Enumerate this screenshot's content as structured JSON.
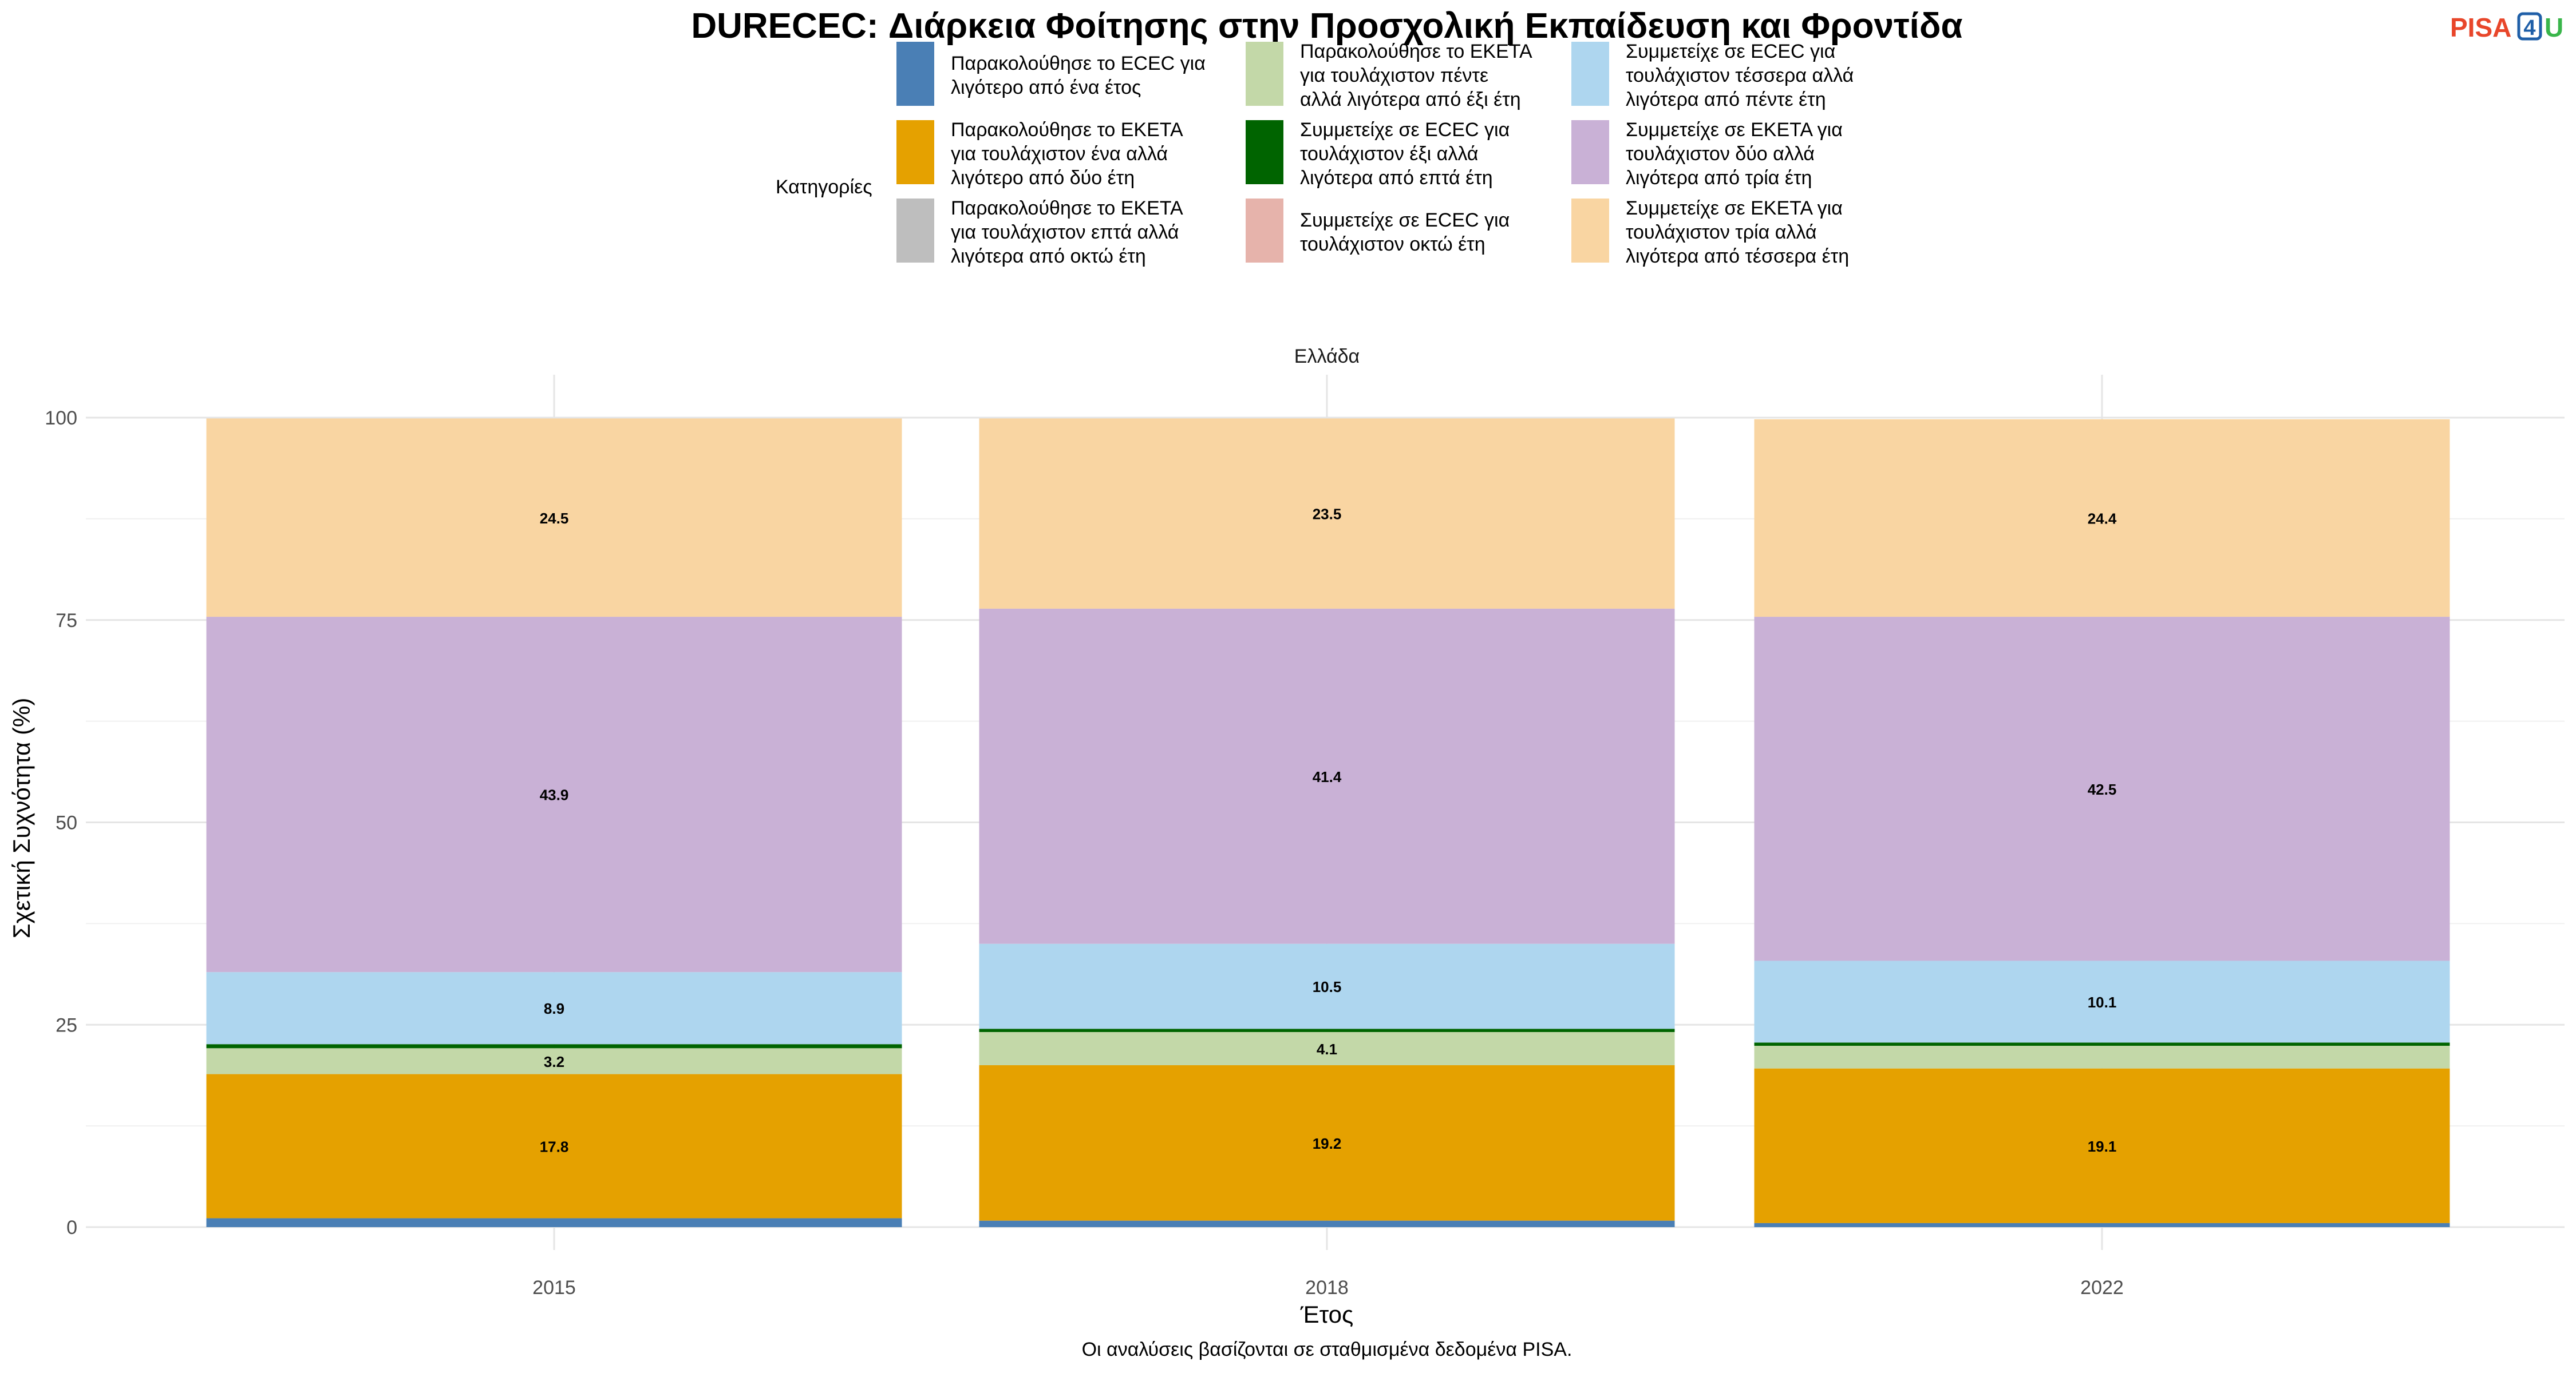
{
  "logo": {
    "part1": "PISA",
    "part2": "4",
    "part3": "U",
    "color1": "#e8462a",
    "color2": "#1f5fa8",
    "color3": "#39b54a"
  },
  "chart_data": {
    "type": "bar",
    "stacked": true,
    "title": "DURECEC: Διάρκεια Φοίτησης στην Προσχολική Εκπαίδευση και Φροντίδα",
    "facet": "Ελλάδα",
    "xlabel": "Έτος",
    "ylabel": "Σχετική Συχνότητα (%)",
    "caption": "Οι αναλύσεις βασίζονται σε σταθμισμένα δεδομένα PISA.",
    "legend_title": "Κατηγορίες",
    "legend_position": "top",
    "grid": true,
    "ylim": [
      0,
      100
    ],
    "yticks": [
      0,
      25,
      50,
      75,
      100
    ],
    "categories": [
      "2015",
      "2018",
      "2022"
    ],
    "series": [
      {
        "name": "Παρακολούθησε το ECEC για λιγότερο από ένα έτος",
        "legend_lines": [
          "Παρακολούθησε το ECEC για",
          "λιγότερο από ένα έτος"
        ],
        "color": "#4a7fb5",
        "values": [
          1.1,
          0.8,
          0.5
        ]
      },
      {
        "name": "Παρακολούθησε το ΕΚΕΤΑ για τουλάχιστον ένα αλλά λιγότερο από δύο έτη",
        "legend_lines": [
          "Παρακολούθησε το ΕΚΕΤΑ",
          "για τουλάχιστον ένα αλλά",
          "λιγότερο από δύο έτη"
        ],
        "color": "#e5a100",
        "values": [
          17.8,
          19.2,
          19.1
        ]
      },
      {
        "name": "Παρακολούθησε το ΕΚΕΤΑ για τουλάχιστον πέντε αλλά λιγότερα από έξι έτη",
        "legend_lines": [
          "Παρακολούθησε το ΕΚΕΤΑ",
          "για τουλάχιστον πέντε",
          "αλλά λιγότερα από έξι έτη"
        ],
        "color": "#c3d8a8",
        "values": [
          3.2,
          4.1,
          2.8
        ]
      },
      {
        "name": "Συμμετείχε σε ECEC για τουλάχιστον έξι αλλά λιγότερα από επτά έτη",
        "legend_lines": [
          "Συμμετείχε σε ECEC για",
          "τουλάχιστον έξι αλλά",
          "λιγότερα από επτά έτη"
        ],
        "color": "#006400",
        "values": [
          0.5,
          0.4,
          0.4
        ]
      },
      {
        "name": "Συμμετείχε σε ECEC για τουλάχιστον τέσσερα αλλά λιγότερα από πέντε έτη",
        "legend_lines": [
          "Συμμετείχε σε ECEC για",
          "τουλάχιστον τέσσερα αλλά",
          "λιγότερα από πέντε έτη"
        ],
        "color": "#aed6ef",
        "values": [
          8.9,
          10.5,
          10.1
        ]
      },
      {
        "name": "Συμμετείχε σε ΕΚΕΤΑ για τουλάχιστον δύο αλλά λιγότερα από τρία έτη",
        "legend_lines": [
          "Συμμετείχε σε ΕΚΕΤΑ για",
          "τουλάχιστον δύο αλλά",
          "λιγότερα από τρία έτη"
        ],
        "color": "#c9b1d6",
        "values": [
          43.9,
          41.4,
          42.5
        ]
      },
      {
        "name": "Συμμετείχε σε ΕΚΕΤΑ για τουλάχιστον τρία αλλά λιγότερα από τέσσερα έτη",
        "legend_lines": [
          "Συμμετείχε σε ΕΚΕΤΑ για",
          "τουλάχιστον τρία αλλά",
          "λιγότερα από τέσσερα έτη"
        ],
        "color": "#f9d5a2",
        "values": [
          24.5,
          23.5,
          24.4
        ]
      },
      {
        "name": "Παρακολούθησε το ΕΚΕΤΑ για τουλάχιστον επτά αλλά λιγότερα από οκτώ έτη",
        "legend_lines": [
          "Παρακολούθησε το ΕΚΕΤΑ",
          "για τουλάχιστον επτά αλλά",
          "λιγότερα από οκτώ έτη"
        ],
        "color": "#bebebe",
        "values": [
          0,
          0,
          0
        ]
      },
      {
        "name": "Συμμετείχε σε ECEC για τουλάχιστον οκτώ έτη",
        "legend_lines": [
          "Συμμετείχε σε ECEC για",
          "τουλάχιστον οκτώ έτη"
        ],
        "color": "#e6b3ab",
        "values": [
          0,
          0,
          0
        ]
      }
    ],
    "stack_order": [
      0,
      1,
      2,
      3,
      4,
      5,
      6,
      7,
      8
    ],
    "legend_order": [
      0,
      1,
      7,
      2,
      3,
      8,
      4,
      5,
      6
    ],
    "shown_labels": [
      [
        null,
        "17.8",
        "3.2",
        null,
        "8.9",
        "43.9",
        "24.5",
        null,
        null
      ],
      [
        null,
        "19.2",
        "4.1",
        null,
        "10.5",
        "41.4",
        "23.5",
        null,
        null
      ],
      [
        null,
        "19.1",
        null,
        null,
        "10.1",
        "42.5",
        "24.4",
        null,
        null
      ]
    ]
  }
}
